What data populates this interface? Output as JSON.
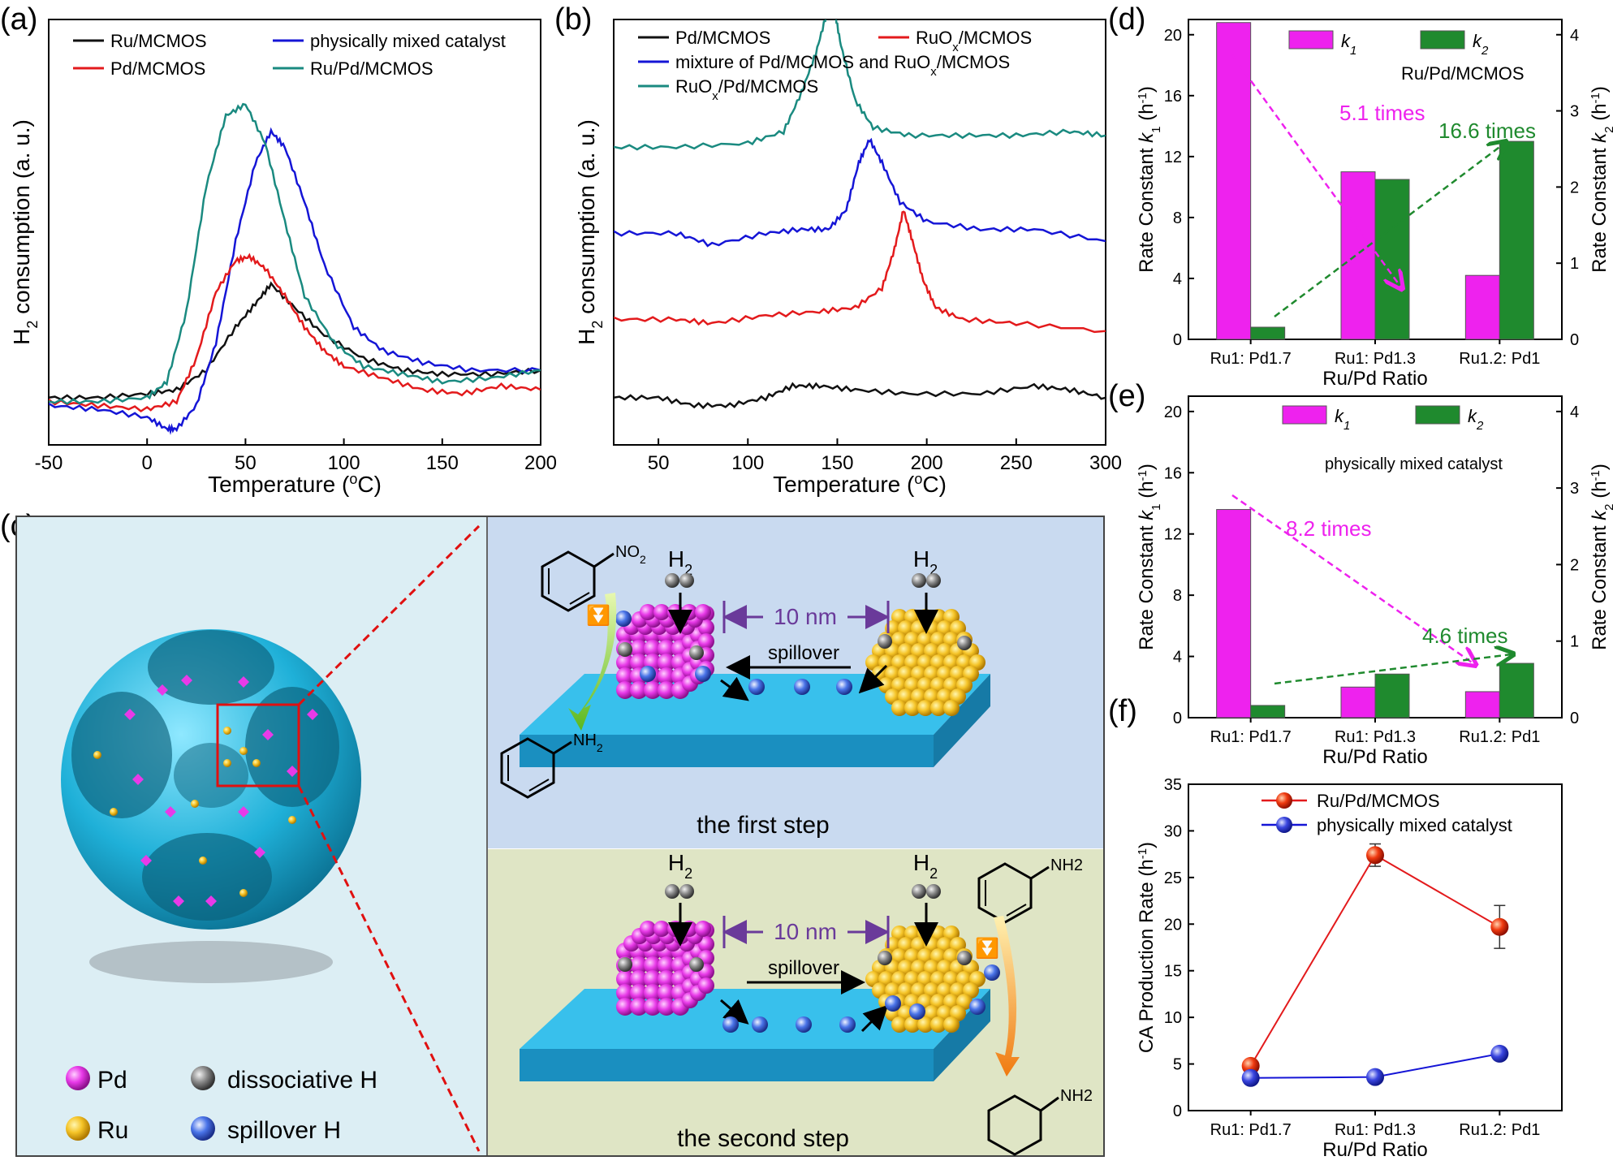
{
  "colors": {
    "black": "#111111",
    "red": "#e31a1c",
    "blue": "#1515d6",
    "teal": "#1a8a80",
    "magenta": "#ee22ee",
    "green": "#1f8a2e",
    "orange": "#f05a1a",
    "pd": "#e83ae8",
    "ru": "#f5c428",
    "dissociative": "#777777",
    "spillover": "#3a64e0",
    "support": "#23b6e6",
    "bg_left": "#dceef4",
    "bg_top": "#c9daf0",
    "bg_bottom": "#dfe5c5"
  },
  "panel_labels": {
    "a": "(a)",
    "b": "(b)",
    "c": "(c)",
    "d": "(d)",
    "e": "(e)",
    "f": "(f)"
  },
  "chart_data": [
    {
      "id": "a",
      "type": "line",
      "xlabel": "Temperature (oC)",
      "ylabel": "H2 consumption (a. u.)",
      "xlim": [
        -50,
        200
      ],
      "xticks": [
        -50,
        0,
        50,
        100,
        150,
        200
      ],
      "legend": "top",
      "series": [
        {
          "name": "Ru/MCMOS",
          "color": "#111111",
          "x": [
            -50,
            -25,
            0,
            15,
            30,
            45,
            55,
            63,
            75,
            90,
            110,
            130,
            150,
            175,
            200
          ],
          "y": [
            0.1,
            0.1,
            0.11,
            0.12,
            0.17,
            0.28,
            0.34,
            0.39,
            0.33,
            0.26,
            0.2,
            0.17,
            0.16,
            0.16,
            0.17
          ]
        },
        {
          "name": "physically mixed catalyst",
          "color": "#1515d6",
          "x": [
            -50,
            -25,
            0,
            10,
            15,
            25,
            35,
            45,
            55,
            63,
            70,
            80,
            90,
            105,
            120,
            140,
            165,
            200
          ],
          "y": [
            0.08,
            0.07,
            0.05,
            0.02,
            0.02,
            0.08,
            0.24,
            0.5,
            0.7,
            0.78,
            0.74,
            0.6,
            0.44,
            0.28,
            0.22,
            0.19,
            0.17,
            0.17
          ]
        },
        {
          "name": "Pd/MCMOS",
          "color": "#e31a1c",
          "x": [
            -50,
            -25,
            0,
            15,
            25,
            35,
            45,
            52,
            60,
            70,
            80,
            90,
            100,
            120,
            140,
            160,
            180,
            200
          ],
          "y": [
            0.09,
            0.08,
            0.07,
            0.09,
            0.2,
            0.37,
            0.45,
            0.46,
            0.43,
            0.36,
            0.28,
            0.22,
            0.18,
            0.15,
            0.12,
            0.11,
            0.13,
            0.12
          ]
        },
        {
          "name": "Ru/Pd/MCMOS",
          "color": "#1a8a80",
          "x": [
            -50,
            -25,
            0,
            10,
            20,
            30,
            40,
            50,
            60,
            70,
            80,
            95,
            110,
            130,
            150,
            175,
            200
          ],
          "y": [
            0.09,
            0.09,
            0.1,
            0.14,
            0.32,
            0.64,
            0.82,
            0.85,
            0.75,
            0.55,
            0.36,
            0.24,
            0.18,
            0.16,
            0.14,
            0.15,
            0.17
          ]
        }
      ]
    },
    {
      "id": "b",
      "type": "line",
      "xlabel": "Temperature (oC)",
      "ylabel": "H2 consumption (a. u.)",
      "xlim": [
        25,
        300
      ],
      "xticks": [
        50,
        100,
        150,
        200,
        250,
        300
      ],
      "legend": "top",
      "series": [
        {
          "name": "Pd/MCMOS",
          "color": "#111111",
          "x": [
            25,
            50,
            70,
            90,
            110,
            125,
            140,
            160,
            190,
            230,
            260,
            280,
            300
          ],
          "y": [
            0.1,
            0.1,
            0.08,
            0.08,
            0.1,
            0.13,
            0.13,
            0.12,
            0.11,
            0.11,
            0.13,
            0.12,
            0.1
          ]
        },
        {
          "name": "RuOx/MCMOS",
          "color": "#e31a1c",
          "x": [
            25,
            60,
            80,
            110,
            140,
            160,
            175,
            182,
            187,
            192,
            198,
            205,
            220,
            250,
            300
          ],
          "y": [
            0.3,
            0.3,
            0.29,
            0.31,
            0.32,
            0.33,
            0.38,
            0.48,
            0.58,
            0.5,
            0.4,
            0.33,
            0.3,
            0.29,
            0.27
          ]
        },
        {
          "name": "mixture of Pd/MCMOS and RuOx/MCMOS",
          "color": "#1515d6",
          "x": [
            25,
            60,
            80,
            110,
            130,
            145,
            155,
            162,
            168,
            175,
            185,
            200,
            230,
            260,
            300
          ],
          "y": [
            0.52,
            0.52,
            0.49,
            0.52,
            0.53,
            0.53,
            0.58,
            0.7,
            0.76,
            0.7,
            0.6,
            0.55,
            0.53,
            0.53,
            0.5
          ]
        },
        {
          "name": "RuOx/Pd/MCMOS",
          "color": "#1a8a80",
          "x": [
            25,
            60,
            100,
            120,
            130,
            138,
            144,
            148,
            152,
            160,
            170,
            190,
            220,
            250,
            280,
            300
          ],
          "y": [
            0.74,
            0.74,
            0.75,
            0.78,
            0.88,
            0.98,
            1.08,
            1.1,
            1.0,
            0.86,
            0.79,
            0.77,
            0.77,
            0.77,
            0.78,
            0.77
          ]
        }
      ]
    },
    {
      "id": "d",
      "type": "bar",
      "title": "Ru/Pd/MCMOS",
      "categories": [
        "Ru1: Pd1.7",
        "Ru1: Pd1.3",
        "Ru1.2: Pd1"
      ],
      "xlabel": "Ru/Pd Ratio",
      "ylabel": "Rate Constant k1 (h-1)",
      "y2label": "Rate Constant k2 (h-1)",
      "ylim": [
        0,
        21
      ],
      "y2lim": [
        0,
        4.2
      ],
      "series": [
        {
          "name": "k1",
          "axis": "left",
          "color": "#ee22ee",
          "values": [
            20.8,
            11.0,
            4.2
          ]
        },
        {
          "name": "k2",
          "axis": "right",
          "color": "#1f8a2e",
          "values": [
            0.16,
            2.1,
            2.6
          ]
        }
      ],
      "annotations": [
        "5.1 times",
        "16.6 times"
      ]
    },
    {
      "id": "e",
      "type": "bar",
      "title": "physically mixed catalyst",
      "categories": [
        "Ru1: Pd1.7",
        "Ru1: Pd1.3",
        "Ru1.2: Pd1"
      ],
      "xlabel": "Ru/Pd Ratio",
      "ylabel": "Rate Constant k1 (h-1)",
      "y2label": "Rate Constant k2 (h-1)",
      "ylim": [
        0,
        21
      ],
      "y2lim": [
        0,
        4.2
      ],
      "series": [
        {
          "name": "k1",
          "axis": "left",
          "color": "#ee22ee",
          "values": [
            13.6,
            2.0,
            1.7
          ]
        },
        {
          "name": "k2",
          "axis": "right",
          "color": "#1f8a2e",
          "values": [
            0.16,
            0.57,
            0.71
          ]
        }
      ],
      "annotations": [
        "8.2 times",
        "4.6 times"
      ]
    },
    {
      "id": "f",
      "type": "line",
      "categories": [
        "Ru1: Pd1.7",
        "Ru1: Pd1.3",
        "Ru1.2: Pd1"
      ],
      "xlabel": "Ru/Pd Ratio",
      "ylabel": "CA Production Rate (h-1)",
      "ylim": [
        0,
        35
      ],
      "yticks": [
        0,
        5,
        10,
        15,
        20,
        25,
        30,
        35
      ],
      "legend": "top",
      "series": [
        {
          "name": "Ru/Pd/MCMOS",
          "color": "#e31a1c",
          "values": [
            4.8,
            27.4,
            19.7
          ],
          "errors": [
            0.4,
            1.2,
            2.3
          ]
        },
        {
          "name": "physically mixed catalyst",
          "color": "#1515d6",
          "values": [
            3.5,
            3.6,
            6.1
          ],
          "errors": [
            0.3,
            0.3,
            0.4
          ]
        }
      ]
    }
  ],
  "schematic": {
    "legend": {
      "pd": "Pd",
      "ru": "Ru",
      "dissociative": "dissociative H",
      "spillover": "spillover H"
    },
    "step1": {
      "h2_left": "H2",
      "h2_right": "H2",
      "distance": "10 nm",
      "spillover": "spillover",
      "caption": "the first step",
      "reactant": "NO2",
      "product": "NH2"
    },
    "step2": {
      "h2_left": "H2",
      "h2_right": "H2",
      "distance": "10 nm",
      "spillover": "spillover",
      "caption": "the second step",
      "reactant": "NH2",
      "product": "NH2"
    }
  }
}
